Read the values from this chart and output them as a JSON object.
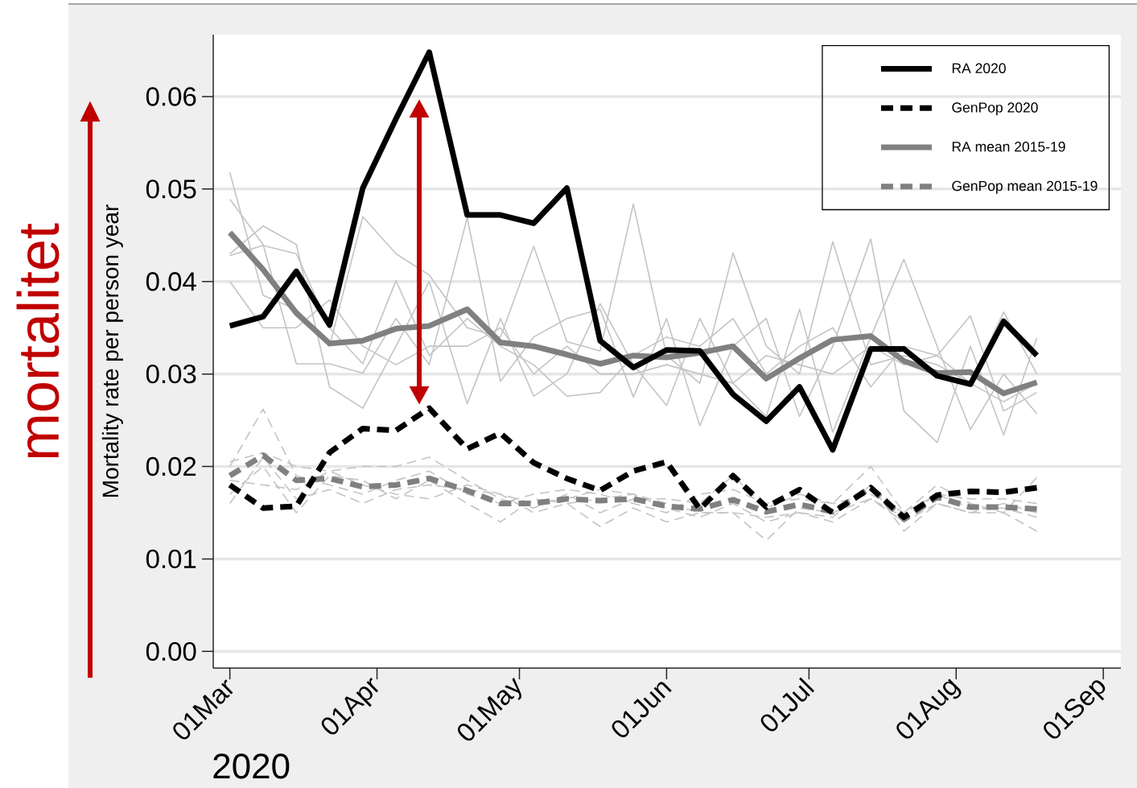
{
  "chart_data": {
    "type": "line",
    "ylabel": "Mortality rate per person year",
    "annotations": [
      "mortalitet",
      "2020"
    ],
    "x": [
      "2020-03-01",
      "2020-03-08",
      "2020-03-15",
      "2020-03-22",
      "2020-03-29",
      "2020-04-05",
      "2020-04-12",
      "2020-04-20",
      "2020-04-27",
      "2020-05-04",
      "2020-05-11",
      "2020-05-18",
      "2020-05-25",
      "2020-06-01",
      "2020-06-08",
      "2020-06-15",
      "2020-06-22",
      "2020-06-29",
      "2020-07-06",
      "2020-07-14",
      "2020-07-21",
      "2020-07-28",
      "2020-08-04",
      "2020-08-11",
      "2020-08-18"
    ],
    "xlim": [
      "2020-02-26T12:00",
      "2020-09-04T17:00"
    ],
    "xticks": [
      {
        "value": "2020-03-01",
        "label": "01Mar"
      },
      {
        "value": "2020-04-01",
        "label": "01Apr"
      },
      {
        "value": "2020-05-01",
        "label": "01May"
      },
      {
        "value": "2020-06-01",
        "label": "01Jun"
      },
      {
        "value": "2020-07-01",
        "label": "01Jul"
      },
      {
        "value": "2020-08-01",
        "label": "01Aug"
      },
      {
        "value": "2020-09-01",
        "label": "01Sep"
      }
    ],
    "ylim": [
      -0.0018,
      0.0667
    ],
    "yticks": [
      {
        "value": 0,
        "label": "0.00"
      },
      0.01,
      0.02,
      0.03,
      0.04,
      0.05,
      0.06
    ],
    "grid": "y",
    "legend": "top right",
    "marker": "none",
    "series": [
      {
        "name": "RA 2020",
        "color": "#000000",
        "line_style": "solid",
        "values": [
          0.0352,
          0.0362,
          0.0411,
          0.0353,
          0.0501,
          0.0576,
          0.0648,
          0.0472,
          0.0472,
          0.0463,
          0.0501,
          0.0336,
          0.0307,
          0.0326,
          0.0325,
          0.0278,
          0.0249,
          0.0286,
          0.0218,
          0.0327,
          0.0327,
          0.0298,
          0.0289,
          0.0357,
          0.032
        ]
      },
      {
        "name": "GenPop 2020",
        "color": "#000000",
        "line_style": "dashed",
        "values": [
          0.018,
          0.0155,
          0.0157,
          0.0215,
          0.0241,
          0.0239,
          0.0263,
          0.0219,
          0.0236,
          0.0204,
          0.0187,
          0.0174,
          0.0195,
          0.0205,
          0.0154,
          0.019,
          0.0156,
          0.0175,
          0.015,
          0.0177,
          0.0145,
          0.0169,
          0.0173,
          0.0172,
          0.0177
        ]
      },
      {
        "name": "RA mean 2015-19",
        "color": "#808080",
        "line_style": "solid",
        "values": [
          0.0453,
          0.0413,
          0.0366,
          0.0333,
          0.0336,
          0.0349,
          0.0352,
          0.037,
          0.0334,
          0.033,
          0.0321,
          0.0311,
          0.032,
          0.0318,
          0.0323,
          0.033,
          0.0295,
          0.0317,
          0.0337,
          0.0341,
          0.0314,
          0.0301,
          0.0302,
          0.0279,
          0.0291
        ]
      },
      {
        "name": "GenPop mean 2015-19",
        "color": "#808080",
        "line_style": "dashed",
        "values": [
          0.019,
          0.0212,
          0.0185,
          0.0187,
          0.0178,
          0.018,
          0.0187,
          0.0174,
          0.016,
          0.016,
          0.0165,
          0.0163,
          0.0165,
          0.0157,
          0.0154,
          0.0164,
          0.0151,
          0.0159,
          0.0151,
          0.0177,
          0.0143,
          0.0167,
          0.0156,
          0.0156,
          0.0154
        ]
      },
      {
        "color": "#c4c4c4",
        "line_style": "solid",
        "values": [
          0.0518,
          0.0385,
          0.037,
          0.033,
          0.047,
          0.043,
          0.0407,
          0.035,
          0.034,
          0.0438,
          0.0335,
          0.0325,
          0.0484,
          0.032,
          0.029,
          0.0431,
          0.033,
          0.03,
          0.0443,
          0.031,
          0.032,
          0.031,
          0.029,
          0.0367,
          0.03
        ]
      },
      {
        "color": "#c4c4c4",
        "line_style": "solid",
        "values": [
          0.0489,
          0.044,
          0.0311,
          0.0311,
          0.0301,
          0.036,
          0.031,
          0.0469,
          0.0292,
          0.034,
          0.036,
          0.037,
          0.0275,
          0.036,
          0.0244,
          0.033,
          0.036,
          0.0254,
          0.033,
          0.0446,
          0.026,
          0.0226,
          0.033,
          0.0234,
          0.0339
        ]
      },
      {
        "color": "#c4c4c4",
        "line_style": "solid",
        "values": [
          0.043,
          0.046,
          0.044,
          0.0286,
          0.0263,
          0.033,
          0.04,
          0.0268,
          0.036,
          0.0276,
          0.03,
          0.0376,
          0.031,
          0.0266,
          0.036,
          0.029,
          0.0254,
          0.037,
          0.0237,
          0.034,
          0.0424,
          0.033,
          0.024,
          0.03,
          0.0257
        ]
      },
      {
        "color": "#c4c4c4",
        "line_style": "solid",
        "values": [
          0.0428,
          0.0439,
          0.043,
          0.035,
          0.0311,
          0.0401,
          0.032,
          0.036,
          0.033,
          0.031,
          0.0276,
          0.028,
          0.032,
          0.034,
          0.033,
          0.036,
          0.03,
          0.033,
          0.035,
          0.0286,
          0.033,
          0.032,
          0.0363,
          0.026,
          0.028
        ]
      },
      {
        "color": "#c4c4c4",
        "line_style": "solid",
        "values": [
          0.04,
          0.035,
          0.035,
          0.038,
          0.033,
          0.031,
          0.033,
          0.033,
          0.035,
          0.03,
          0.033,
          0.03,
          0.03,
          0.031,
          0.03,
          0.029,
          0.032,
          0.031,
          0.03,
          0.033,
          0.031,
          0.032,
          0.029,
          0.027,
          0.029
        ]
      },
      {
        "color": "#c4c4c4",
        "line_style": "dashed",
        "values": [
          0.02,
          0.0262,
          0.019,
          0.018,
          0.017,
          0.0185,
          0.0195,
          0.017,
          0.016,
          0.017,
          0.0175,
          0.017,
          0.016,
          0.015,
          0.017,
          0.0175,
          0.016,
          0.0165,
          0.016,
          0.02,
          0.015,
          0.018,
          0.016,
          0.015,
          0.0188
        ]
      },
      {
        "color": "#c4c4c4",
        "line_style": "dashed",
        "values": [
          0.017,
          0.02,
          0.015,
          0.019,
          0.0185,
          0.0165,
          0.0185,
          0.016,
          0.014,
          0.0165,
          0.016,
          0.0165,
          0.017,
          0.0155,
          0.0145,
          0.016,
          0.014,
          0.015,
          0.0145,
          0.018,
          0.013,
          0.016,
          0.015,
          0.016,
          0.015
        ]
      },
      {
        "color": "#c4c4c4",
        "line_style": "dashed",
        "values": [
          0.0205,
          0.0215,
          0.02,
          0.0195,
          0.02,
          0.02,
          0.021,
          0.0185,
          0.0165,
          0.0155,
          0.017,
          0.015,
          0.0165,
          0.0165,
          0.016,
          0.019,
          0.0155,
          0.017,
          0.016,
          0.017,
          0.015,
          0.017,
          0.0165,
          0.0165,
          0.016
        ]
      },
      {
        "color": "#c4c4c4",
        "line_style": "dashed",
        "values": [
          0.016,
          0.021,
          0.0165,
          0.0175,
          0.016,
          0.0175,
          0.018,
          0.0175,
          0.017,
          0.015,
          0.016,
          0.0135,
          0.0155,
          0.014,
          0.015,
          0.015,
          0.0145,
          0.015,
          0.014,
          0.0165,
          0.014,
          0.016,
          0.015,
          0.015,
          0.013
        ]
      },
      {
        "color": "#c4c4c4",
        "line_style": "dashed",
        "values": [
          0.0185,
          0.018,
          0.0175,
          0.0195,
          0.018,
          0.017,
          0.0165,
          0.018,
          0.017,
          0.016,
          0.0165,
          0.0175,
          0.017,
          0.016,
          0.015,
          0.015,
          0.012,
          0.0155,
          0.015,
          0.0165,
          0.0145,
          0.017,
          0.0155,
          0.0155,
          0.0145
        ]
      }
    ]
  }
}
